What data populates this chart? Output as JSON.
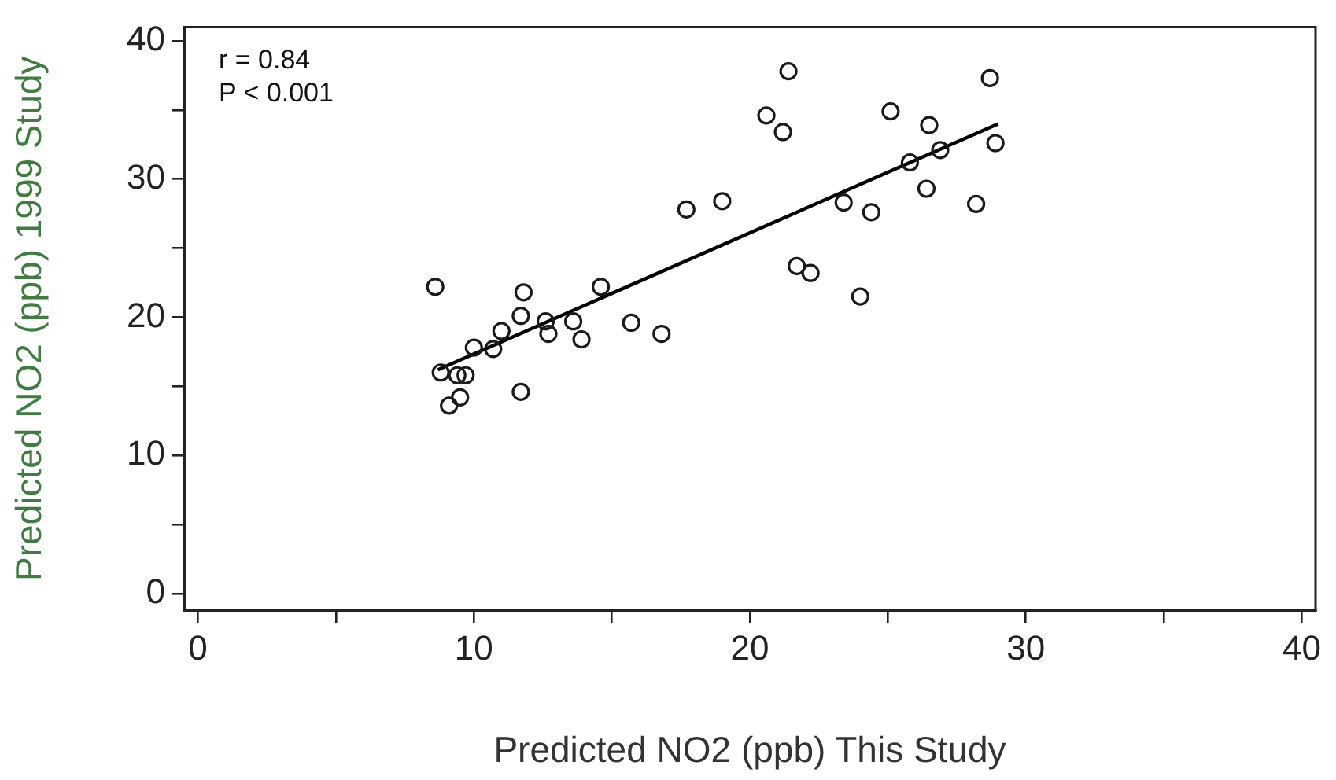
{
  "chart_data": {
    "type": "scatter",
    "xlabel": "Predicted NO2 (ppb) This Study",
    "ylabel": "Predicted NO2 (ppb) 1999 Study",
    "annotations": [
      "r = 0.84",
      "P < 0.001"
    ],
    "xlim": [
      -0.5,
      40.5
    ],
    "ylim": [
      -1.2,
      41
    ],
    "xticks": [
      0,
      {
        "value": 5,
        "label": null
      },
      10,
      {
        "value": 15,
        "label": null
      },
      20,
      {
        "value": 25,
        "label": null
      },
      30,
      {
        "value": 35,
        "label": null
      },
      40
    ],
    "yticks": [
      0,
      {
        "value": 5,
        "label": null
      },
      10,
      {
        "value": 15,
        "label": null
      },
      20,
      {
        "value": 25,
        "label": null
      },
      30,
      {
        "value": 35,
        "label": null
      },
      40
    ],
    "grid": false,
    "legend": false,
    "marker": "circle",
    "series": [
      {
        "color": "#1a1a1a",
        "x": [
          8.6,
          8.8,
          9.1,
          9.4,
          9.5,
          9.7,
          10.0,
          10.7,
          11.0,
          11.7,
          11.8,
          11.7,
          12.6,
          12.7,
          13.6,
          13.9,
          14.6,
          15.7,
          16.8,
          17.7,
          19.0,
          20.6,
          21.2,
          21.4,
          21.7,
          22.2,
          23.4,
          24.0,
          24.4,
          25.1,
          25.8,
          26.4,
          26.5,
          26.9,
          28.2,
          28.7,
          28.9
        ],
        "values": [
          22.2,
          16.0,
          13.6,
          15.8,
          14.2,
          15.8,
          17.8,
          17.7,
          19.0,
          20.1,
          21.8,
          14.6,
          19.7,
          18.8,
          19.7,
          18.4,
          22.2,
          19.6,
          18.8,
          27.8,
          28.4,
          34.6,
          33.4,
          37.8,
          23.7,
          23.2,
          28.3,
          21.5,
          27.6,
          34.9,
          31.2,
          29.3,
          33.9,
          32.1,
          28.2,
          37.3,
          32.6
        ]
      },
      {
        "type": "line",
        "color": "#000000",
        "x": [
          8.7,
          29.0
        ],
        "values": [
          16.2,
          34.0
        ],
        "marker": "none",
        "line_style": "solid"
      }
    ]
  }
}
